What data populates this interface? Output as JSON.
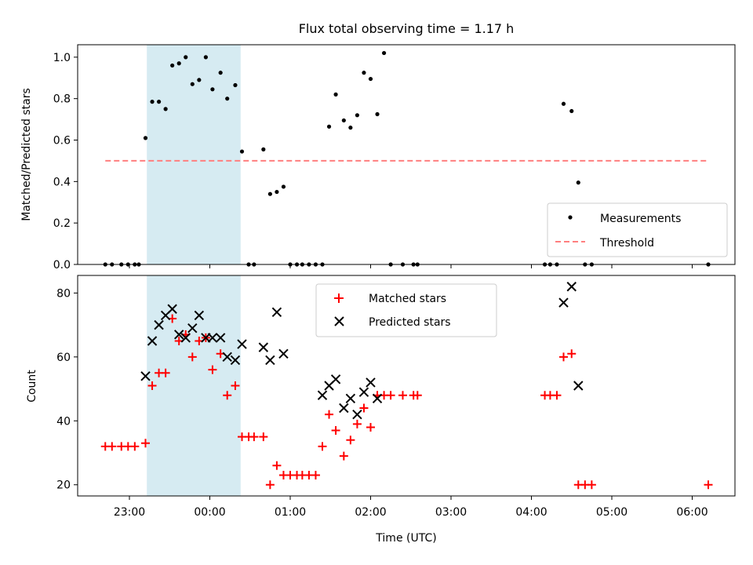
{
  "chart_data": [
    {
      "type": "scatter",
      "title": "Flux total observing time = 1.17 h",
      "xlabel": "",
      "ylabel": "Matched/Predicted stars",
      "ylim": [
        0,
        1.06
      ],
      "yticks": [
        "0.0",
        "0.2",
        "0.4",
        "0.6",
        "0.8",
        "1.0"
      ],
      "x_ticks": [
        "23:00",
        "00:00",
        "01:00",
        "02:00",
        "03:00",
        "04:00",
        "05:00",
        "06:00"
      ],
      "x_tick_labels_visible": false,
      "shaded_interval": {
        "start": "23:13",
        "end": "00:23",
        "color": "#add8e6"
      },
      "threshold": {
        "value": 0.5,
        "from": "22:42",
        "to": "06:12",
        "color": "#ff7f7f",
        "style": "dashed"
      },
      "legend": {
        "position": "lower-right",
        "entries": [
          {
            "label": "Measurements",
            "marker": "dot",
            "color": "#000000"
          },
          {
            "label": "Threshold",
            "marker": "dashed-line",
            "color": "#ff7f7f"
          }
        ]
      },
      "series": [
        {
          "name": "Measurements",
          "marker": "dot",
          "color": "#000000",
          "points": [
            [
              "22:42",
              0
            ],
            [
              "22:47",
              0
            ],
            [
              "22:54",
              0
            ],
            [
              "22:59",
              0
            ],
            [
              "23:04",
              0
            ],
            [
              "23:07",
              0
            ],
            [
              "23:12",
              0.61
            ],
            [
              "23:17",
              0.785
            ],
            [
              "23:22",
              0.785
            ],
            [
              "23:27",
              0.75
            ],
            [
              "23:32",
              0.96
            ],
            [
              "23:37",
              0.97
            ],
            [
              "23:42",
              1.0
            ],
            [
              "23:47",
              0.87
            ],
            [
              "23:52",
              0.89
            ],
            [
              "23:57",
              1.0
            ],
            [
              "00:02",
              0.845
            ],
            [
              "00:08",
              0.925
            ],
            [
              "00:13",
              0.8
            ],
            [
              "00:19",
              0.865
            ],
            [
              "00:24",
              0.545
            ],
            [
              "00:29",
              0
            ],
            [
              "00:33",
              0
            ],
            [
              "00:40",
              0.555
            ],
            [
              "00:45",
              0.34
            ],
            [
              "00:50",
              0.35
            ],
            [
              "00:55",
              0.375
            ],
            [
              "01:00",
              0
            ],
            [
              "01:05",
              0
            ],
            [
              "01:09",
              0
            ],
            [
              "01:14",
              0
            ],
            [
              "01:19",
              0
            ],
            [
              "01:24",
              0
            ],
            [
              "01:29",
              0.665
            ],
            [
              "01:34",
              0.82
            ],
            [
              "01:40",
              0.695
            ],
            [
              "01:45",
              0.66
            ],
            [
              "01:50",
              0.72
            ],
            [
              "01:55",
              0.925
            ],
            [
              "02:00",
              0.895
            ],
            [
              "02:05",
              0.725
            ],
            [
              "02:10",
              1.02
            ],
            [
              "02:15",
              0
            ],
            [
              "02:24",
              0
            ],
            [
              "02:32",
              0
            ],
            [
              "02:35",
              0
            ],
            [
              "04:10",
              0
            ],
            [
              "04:14",
              0
            ],
            [
              "04:19",
              0
            ],
            [
              "04:24",
              0.775
            ],
            [
              "04:30",
              0.74
            ],
            [
              "04:35",
              0.395
            ],
            [
              "04:40",
              0
            ],
            [
              "04:45",
              0
            ],
            [
              "06:12",
              0
            ]
          ]
        }
      ]
    },
    {
      "type": "scatter",
      "title": "",
      "xlabel": "Time (UTC)",
      "ylabel": "Count",
      "ylim": [
        16.5,
        85.5
      ],
      "yticks": [
        "20",
        "40",
        "60",
        "80"
      ],
      "x_ticks": [
        "23:00",
        "00:00",
        "01:00",
        "02:00",
        "03:00",
        "04:00",
        "05:00",
        "06:00"
      ],
      "shaded_interval": {
        "start": "23:13",
        "end": "00:23",
        "color": "#add8e6"
      },
      "legend": {
        "position": "upper-center",
        "entries": [
          {
            "label": "Matched stars",
            "marker": "plus",
            "color": "#ff0000"
          },
          {
            "label": "Predicted stars",
            "marker": "x",
            "color": "#000000"
          }
        ]
      },
      "series": [
        {
          "name": "Matched stars",
          "marker": "plus",
          "color": "#ff0000",
          "points": [
            [
              "22:42",
              32
            ],
            [
              "22:47",
              32
            ],
            [
              "22:54",
              32
            ],
            [
              "22:59",
              32
            ],
            [
              "23:04",
              32
            ],
            [
              "23:12",
              33
            ],
            [
              "23:17",
              51
            ],
            [
              "23:22",
              55
            ],
            [
              "23:27",
              55
            ],
            [
              "23:32",
              72
            ],
            [
              "23:37",
              65
            ],
            [
              "23:42",
              67
            ],
            [
              "23:47",
              60
            ],
            [
              "23:52",
              65
            ],
            [
              "23:57",
              66
            ],
            [
              "00:02",
              56
            ],
            [
              "00:08",
              61
            ],
            [
              "00:13",
              48
            ],
            [
              "00:19",
              51
            ],
            [
              "00:24",
              35
            ],
            [
              "00:29",
              35
            ],
            [
              "00:33",
              35
            ],
            [
              "00:40",
              35
            ],
            [
              "00:45",
              20
            ],
            [
              "00:50",
              26
            ],
            [
              "00:55",
              23
            ],
            [
              "01:00",
              23
            ],
            [
              "01:05",
              23
            ],
            [
              "01:09",
              23
            ],
            [
              "01:14",
              23
            ],
            [
              "01:19",
              23
            ],
            [
              "01:24",
              32
            ],
            [
              "01:29",
              42
            ],
            [
              "01:34",
              37
            ],
            [
              "01:40",
              29
            ],
            [
              "01:45",
              34
            ],
            [
              "01:50",
              39
            ],
            [
              "01:55",
              44
            ],
            [
              "02:00",
              38
            ],
            [
              "02:05",
              48
            ],
            [
              "02:10",
              48
            ],
            [
              "02:15",
              48
            ],
            [
              "02:24",
              48
            ],
            [
              "02:32",
              48
            ],
            [
              "02:35",
              48
            ],
            [
              "04:10",
              48
            ],
            [
              "04:14",
              48
            ],
            [
              "04:19",
              48
            ],
            [
              "04:24",
              60
            ],
            [
              "04:30",
              61
            ],
            [
              "04:35",
              20
            ],
            [
              "04:40",
              20
            ],
            [
              "04:45",
              20
            ],
            [
              "06:12",
              20
            ]
          ]
        },
        {
          "name": "Predicted stars",
          "marker": "x",
          "color": "#000000",
          "points": [
            [
              "23:12",
              54
            ],
            [
              "23:17",
              65
            ],
            [
              "23:22",
              70
            ],
            [
              "23:27",
              73
            ],
            [
              "23:32",
              75
            ],
            [
              "23:37",
              67
            ],
            [
              "23:42",
              66
            ],
            [
              "23:47",
              69
            ],
            [
              "23:52",
              73
            ],
            [
              "23:57",
              66
            ],
            [
              "00:02",
              66
            ],
            [
              "00:08",
              66
            ],
            [
              "00:13",
              60
            ],
            [
              "00:19",
              59
            ],
            [
              "00:24",
              64
            ],
            [
              "00:40",
              63
            ],
            [
              "00:45",
              59
            ],
            [
              "00:50",
              74
            ],
            [
              "00:55",
              61
            ],
            [
              "01:24",
              48
            ],
            [
              "01:29",
              51
            ],
            [
              "01:34",
              53
            ],
            [
              "01:40",
              44
            ],
            [
              "01:45",
              47
            ],
            [
              "01:50",
              42
            ],
            [
              "01:55",
              49
            ],
            [
              "02:00",
              52
            ],
            [
              "02:05",
              47
            ],
            [
              "04:24",
              77
            ],
            [
              "04:30",
              82
            ],
            [
              "04:35",
              51
            ]
          ]
        }
      ]
    }
  ]
}
